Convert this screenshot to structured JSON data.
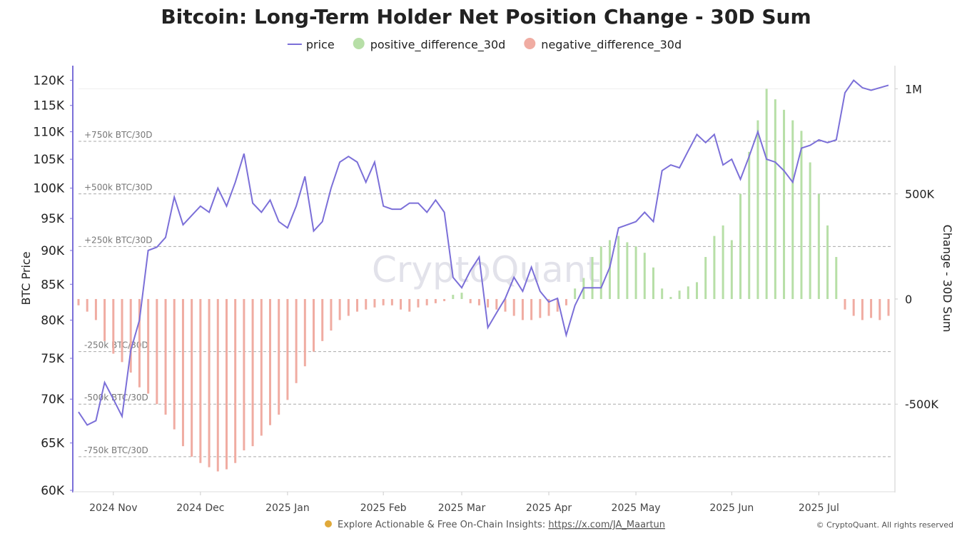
{
  "chart_data": {
    "type": "combo",
    "title": "Bitcoin: Long-Term Holder Net Position Change - 30D Sum",
    "y_label": "BTC Price",
    "y2_label": "Change - 30D Sum",
    "watermark": "CryptoQuant",
    "legend": "top",
    "ylog": true,
    "ylim": [
      60000,
      123000
    ],
    "yticks": [
      {
        "value": 60000,
        "label": "60K"
      },
      {
        "value": 65000,
        "label": "65K"
      },
      {
        "value": 70000,
        "label": "70K"
      },
      {
        "value": 75000,
        "label": "75K"
      },
      {
        "value": 80000,
        "label": "80K"
      },
      {
        "value": 85000,
        "label": "85K"
      },
      {
        "value": 90000,
        "label": "90K"
      },
      {
        "value": 95000,
        "label": "95K"
      },
      {
        "value": 100000,
        "label": "100K"
      },
      {
        "value": 105000,
        "label": "105K"
      },
      {
        "value": 110000,
        "label": "110K"
      },
      {
        "value": 115000,
        "label": "115K"
      },
      {
        "value": 120000,
        "label": "120K"
      }
    ],
    "y2lim": [
      -910000,
      1110000
    ],
    "y2ticks": [
      {
        "value": -500000,
        "label": "-500K"
      },
      0,
      {
        "value": 500000,
        "label": "500K"
      },
      {
        "value": 1000000,
        "label": "1M"
      }
    ],
    "annotations": [
      {
        "value": 750000,
        "label": "+750k BTC/30D"
      },
      {
        "value": 500000,
        "label": "+500k BTC/30D"
      },
      {
        "value": 250000,
        "label": "+250k BTC/30D"
      },
      {
        "value": -250000,
        "label": "-250k BTC/30D"
      },
      {
        "value": -500000,
        "label": "-500k BTC/30D"
      },
      {
        "value": -750000,
        "label": "-750k BTC/30D"
      }
    ],
    "categories": [
      null,
      null,
      null,
      null,
      "2024 Nov",
      null,
      null,
      null,
      null,
      null,
      null,
      null,
      null,
      null,
      "2024 Dec",
      null,
      null,
      null,
      null,
      null,
      null,
      null,
      null,
      null,
      "2025 Jan",
      null,
      null,
      null,
      null,
      null,
      null,
      null,
      null,
      null,
      null,
      "2025 Feb",
      null,
      null,
      null,
      null,
      null,
      null,
      null,
      null,
      "2025 Mar",
      null,
      null,
      null,
      null,
      null,
      null,
      null,
      null,
      null,
      "2025 Apr",
      null,
      null,
      null,
      null,
      null,
      null,
      null,
      null,
      null,
      "2025 May",
      null,
      null,
      null,
      null,
      null,
      null,
      null,
      null,
      null,
      null,
      "2025 Jun",
      null,
      null,
      null,
      null,
      null,
      null,
      null,
      null,
      null,
      "2025 Jul",
      null,
      null,
      null,
      null,
      null,
      null,
      null,
      null
    ],
    "series": [
      {
        "name": "price",
        "type": "line",
        "color": "#7b6fd8",
        "values": [
          68500,
          67000,
          67500,
          72000,
          70000,
          68000,
          76000,
          80000,
          90000,
          90500,
          92000,
          98500,
          94000,
          95500,
          97000,
          96000,
          100000,
          97000,
          101000,
          106000,
          97500,
          96000,
          98000,
          94500,
          93500,
          97000,
          102000,
          93000,
          94500,
          100000,
          104500,
          105500,
          104500,
          101000,
          104500,
          97000,
          96500,
          96500,
          97500,
          97500,
          96000,
          98000,
          96000,
          86000,
          84500,
          87000,
          89000,
          79000,
          81000,
          83000,
          86000,
          84000,
          87500,
          84000,
          82500,
          83000,
          78000,
          82000,
          84500,
          84500,
          84500,
          87500,
          93500,
          94000,
          94500,
          96000,
          94500,
          103000,
          104000,
          103500,
          106500,
          109500,
          108000,
          109500,
          104000,
          105000,
          101500,
          105500,
          110000,
          105000,
          104500,
          103000,
          101000,
          107000,
          107500,
          108500,
          108000,
          108500,
          117500,
          120000,
          118500,
          118000,
          118500,
          119000
        ]
      },
      {
        "name": "positive_difference_30d",
        "type": "bar",
        "axis": "y2",
        "color": "#b7dfa7",
        "values": [
          null,
          null,
          null,
          null,
          null,
          null,
          null,
          null,
          null,
          null,
          null,
          null,
          null,
          null,
          null,
          null,
          null,
          null,
          null,
          null,
          null,
          null,
          null,
          null,
          null,
          null,
          null,
          null,
          null,
          null,
          null,
          null,
          null,
          null,
          null,
          null,
          null,
          null,
          null,
          null,
          null,
          null,
          null,
          20000,
          30000,
          null,
          null,
          null,
          null,
          null,
          null,
          null,
          null,
          null,
          null,
          null,
          null,
          50000,
          100000,
          200000,
          250000,
          280000,
          300000,
          270000,
          250000,
          220000,
          150000,
          50000,
          10000,
          40000,
          60000,
          80000,
          200000,
          300000,
          350000,
          280000,
          500000,
          700000,
          850000,
          1000000,
          950000,
          900000,
          850000,
          800000,
          650000,
          500000,
          350000,
          200000,
          null,
          null,
          null,
          null,
          null,
          null
        ]
      },
      {
        "name": "negative_difference_30d",
        "type": "bar",
        "axis": "y2",
        "color": "#f0aca2",
        "values": [
          -30000,
          -60000,
          -100000,
          -200000,
          -260000,
          -300000,
          -350000,
          -420000,
          -450000,
          -500000,
          -550000,
          -620000,
          -700000,
          -750000,
          -780000,
          -800000,
          -820000,
          -810000,
          -780000,
          -720000,
          -700000,
          -650000,
          -600000,
          -550000,
          -480000,
          -400000,
          -320000,
          -250000,
          -200000,
          -150000,
          -100000,
          -80000,
          -60000,
          -50000,
          -40000,
          -30000,
          -30000,
          -50000,
          -60000,
          -40000,
          -30000,
          -20000,
          -10000,
          null,
          null,
          -20000,
          -30000,
          -40000,
          -50000,
          -60000,
          -80000,
          -100000,
          -100000,
          -90000,
          -80000,
          -60000,
          -30000,
          null,
          null,
          null,
          null,
          null,
          null,
          null,
          null,
          null,
          null,
          null,
          null,
          null,
          null,
          null,
          null,
          null,
          null,
          null,
          null,
          null,
          null,
          null,
          null,
          null,
          null,
          null,
          null,
          null,
          null,
          null,
          -50000,
          -80000,
          -100000,
          -90000,
          -100000,
          -80000
        ]
      }
    ]
  },
  "footer": {
    "text": "Explore Actionable & Free On-Chain Insights: ",
    "link": "https://x.com/JA_Maartun",
    "copyright": "© CryptoQuant. All rights reserved"
  }
}
